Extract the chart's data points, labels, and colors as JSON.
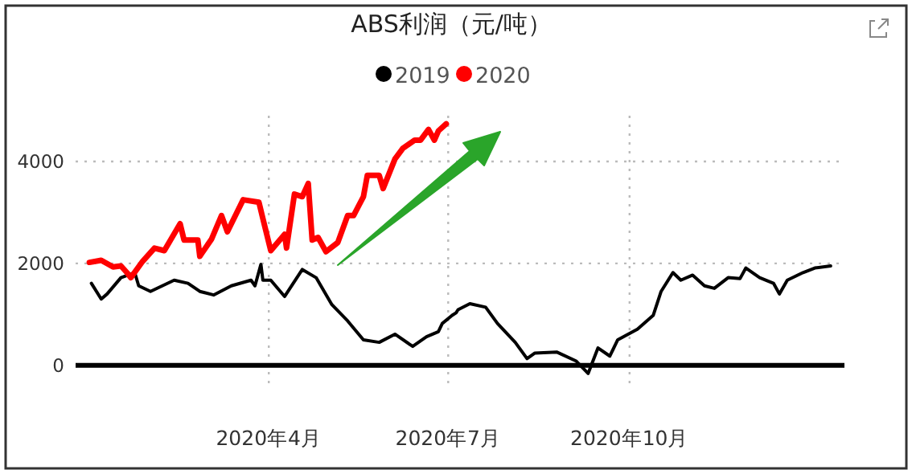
{
  "chart_data": {
    "type": "line",
    "title": "ABS利润（元/吨）",
    "legend": "top",
    "grid": true,
    "xlim": [
      "2019-12-25",
      "2021-01-18"
    ],
    "ylim": [
      -400,
      4900
    ],
    "xticks": [
      {
        "value": "2020-04-01",
        "label": "2020年4月"
      },
      {
        "value": "2020-07-01",
        "label": "2020年7月"
      },
      {
        "value": "2020-10-01",
        "label": "2020年10月"
      }
    ],
    "yticks": [
      0,
      2000,
      4000
    ],
    "ref_lines": [
      {
        "axis": "y",
        "value": 0,
        "color": "#000000"
      }
    ],
    "series": [
      {
        "name": "2019",
        "color": "#000000",
        "x": [
          "2020-01-02",
          "2020-01-07",
          "2020-01-10",
          "2020-01-17",
          "2020-01-24",
          "2020-01-26",
          "2020-02-01",
          "2020-02-13",
          "2020-02-20",
          "2020-02-26",
          "2020-03-04",
          "2020-03-13",
          "2020-03-23",
          "2020-03-25",
          "2020-03-28",
          "2020-03-29",
          "2020-04-02",
          "2020-04-09",
          "2020-04-18",
          "2020-04-25",
          "2020-05-03",
          "2020-05-11",
          "2020-05-19",
          "2020-05-27",
          "2020-06-04",
          "2020-06-13",
          "2020-06-20",
          "2020-06-26",
          "2020-06-28",
          "2020-07-03",
          "2020-07-05",
          "2020-07-06",
          "2020-07-12",
          "2020-07-20",
          "2020-07-26",
          "2020-08-04",
          "2020-08-10",
          "2020-08-14",
          "2020-08-25",
          "2020-09-04",
          "2020-09-10",
          "2020-09-15",
          "2020-09-21",
          "2020-09-25",
          "2020-10-05",
          "2020-10-13",
          "2020-10-17",
          "2020-10-23",
          "2020-10-27",
          "2020-11-02",
          "2020-11-08",
          "2020-11-13",
          "2020-11-20",
          "2020-11-26",
          "2020-11-29",
          "2020-12-06",
          "2020-12-13",
          "2020-12-16",
          "2020-12-20",
          "2020-12-28",
          "2021-01-03",
          "2021-01-11"
        ],
        "values": [
          1610,
          1300,
          1400,
          1720,
          1820,
          1560,
          1450,
          1670,
          1610,
          1450,
          1380,
          1560,
          1670,
          1560,
          1980,
          1670,
          1670,
          1350,
          1880,
          1720,
          1190,
          870,
          500,
          450,
          610,
          370,
          560,
          660,
          820,
          980,
          1030,
          1090,
          1210,
          1140,
          820,
          450,
          130,
          240,
          260,
          80,
          -160,
          340,
          180,
          500,
          710,
          980,
          1450,
          1820,
          1670,
          1770,
          1560,
          1510,
          1720,
          1700,
          1910,
          1720,
          1610,
          1400,
          1670,
          1820,
          1910,
          1950
        ]
      },
      {
        "name": "2020",
        "color": "#ff0000",
        "x": [
          "2020-01-01",
          "2020-01-07",
          "2020-01-13",
          "2020-01-17",
          "2020-01-20",
          "2020-01-22",
          "2020-01-28",
          "2020-02-03",
          "2020-02-08",
          "2020-02-16",
          "2020-02-18",
          "2020-02-25",
          "2020-02-26",
          "2020-03-03",
          "2020-03-08",
          "2020-03-11",
          "2020-03-19",
          "2020-03-27",
          "2020-03-29",
          "2020-04-02",
          "2020-04-09",
          "2020-04-10",
          "2020-04-14",
          "2020-04-18",
          "2020-04-21",
          "2020-04-23",
          "2020-04-26",
          "2020-04-30",
          "2020-05-06",
          "2020-05-11",
          "2020-05-14",
          "2020-05-19",
          "2020-05-21",
          "2020-05-27",
          "2020-05-29",
          "2020-06-04",
          "2020-06-08",
          "2020-06-14",
          "2020-06-17",
          "2020-06-21",
          "2020-06-24",
          "2020-06-26",
          "2020-06-30"
        ],
        "values": [
          2020,
          2060,
          1930,
          1950,
          1820,
          1720,
          2040,
          2300,
          2250,
          2780,
          2460,
          2460,
          2140,
          2480,
          2940,
          2620,
          3250,
          3200,
          2880,
          2250,
          2570,
          2300,
          3360,
          3310,
          3570,
          2460,
          2510,
          2230,
          2410,
          2940,
          2940,
          3310,
          3730,
          3730,
          3470,
          4050,
          4260,
          4420,
          4420,
          4630,
          4420,
          4600,
          4740
        ]
      }
    ]
  }
}
